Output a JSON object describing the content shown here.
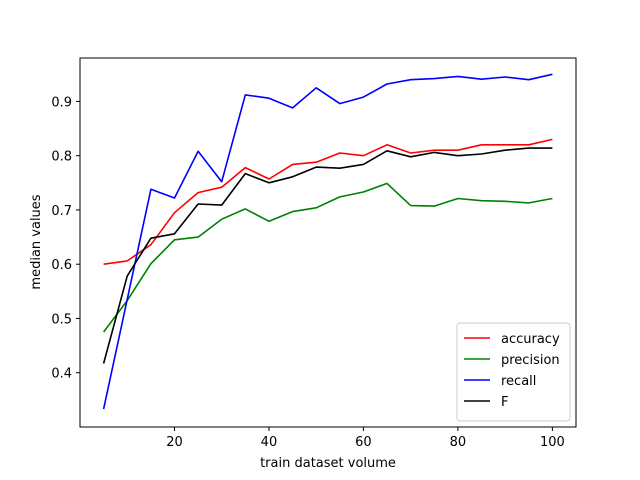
{
  "chart_data": {
    "type": "line",
    "title": "",
    "xlabel": "train dataset volume",
    "ylabel": "median values",
    "xlim": [
      0,
      105
    ],
    "ylim": [
      0.3,
      0.98
    ],
    "xticks": [
      20,
      40,
      60,
      80,
      100
    ],
    "yticks": [
      0.4,
      0.5,
      0.6,
      0.7,
      0.8,
      0.9
    ],
    "ytick_labels": [
      "0.4",
      "0.5",
      "0.6",
      "0.7",
      "0.8",
      "0.9"
    ],
    "grid": false,
    "legend_position": "lower-right",
    "x": [
      5,
      10,
      15,
      20,
      25,
      30,
      35,
      40,
      45,
      50,
      55,
      60,
      65,
      70,
      75,
      80,
      85,
      90,
      95,
      100
    ],
    "series": [
      {
        "name": "accuracy",
        "color": "#ff0000",
        "values": [
          0.6,
          0.606,
          0.636,
          0.695,
          0.732,
          0.742,
          0.778,
          0.757,
          0.784,
          0.788,
          0.805,
          0.8,
          0.82,
          0.805,
          0.81,
          0.81,
          0.82,
          0.82,
          0.82,
          0.83
        ]
      },
      {
        "name": "precision",
        "color": "#008000",
        "values": [
          0.475,
          0.533,
          0.601,
          0.645,
          0.65,
          0.683,
          0.702,
          0.679,
          0.697,
          0.704,
          0.724,
          0.733,
          0.749,
          0.708,
          0.707,
          0.721,
          0.717,
          0.716,
          0.713,
          0.721
        ]
      },
      {
        "name": "recall",
        "color": "#0000ff",
        "values": [
          0.333,
          0.535,
          0.738,
          0.722,
          0.808,
          0.752,
          0.912,
          0.906,
          0.888,
          0.925,
          0.896,
          0.908,
          0.932,
          0.94,
          0.942,
          0.946,
          0.941,
          0.945,
          0.94,
          0.95
        ]
      },
      {
        "name": "F",
        "color": "#000000",
        "values": [
          0.417,
          0.578,
          0.648,
          0.656,
          0.711,
          0.709,
          0.767,
          0.75,
          0.761,
          0.779,
          0.777,
          0.784,
          0.809,
          0.798,
          0.806,
          0.8,
          0.803,
          0.81,
          0.814,
          0.814
        ]
      }
    ]
  }
}
